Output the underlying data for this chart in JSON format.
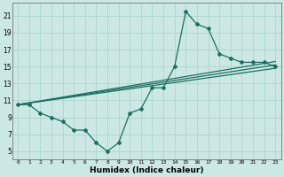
{
  "xlabel": "Humidex (Indice chaleur)",
  "bg_color": "#cce8e4",
  "grid_color": "#b0d8d0",
  "line_color": "#1a7060",
  "xlim": [
    -0.5,
    23.5
  ],
  "ylim": [
    4.0,
    22.5
  ],
  "xticks": [
    0,
    1,
    2,
    3,
    4,
    5,
    6,
    7,
    8,
    9,
    10,
    11,
    12,
    13,
    14,
    15,
    16,
    17,
    18,
    19,
    20,
    21,
    22,
    23
  ],
  "yticks": [
    5,
    7,
    9,
    11,
    13,
    15,
    17,
    19,
    21
  ],
  "ytick_labels": [
    "5",
    "7",
    "9",
    "11",
    "13",
    "15",
    "17",
    "19",
    "21"
  ],
  "main_x": [
    0,
    1,
    2,
    3,
    4,
    5,
    6,
    7,
    8,
    9,
    10,
    11,
    12,
    13,
    14,
    15,
    16,
    17,
    18,
    19,
    20,
    21,
    22,
    23
  ],
  "main_y": [
    10.5,
    10.5,
    9.5,
    9.0,
    8.5,
    7.5,
    7.5,
    6.0,
    5.0,
    6.0,
    9.5,
    10.0,
    12.5,
    12.5,
    15.0,
    21.5,
    20.0,
    19.5,
    16.5,
    16.0,
    15.5,
    15.5,
    15.5,
    15.0
  ],
  "trend1_x": [
    0,
    23
  ],
  "trend1_y": [
    10.5,
    15.2
  ],
  "trend2_x": [
    0,
    23
  ],
  "trend2_y": [
    10.5,
    15.6
  ],
  "trend3_x": [
    0,
    23
  ],
  "trend3_y": [
    10.5,
    14.8
  ]
}
